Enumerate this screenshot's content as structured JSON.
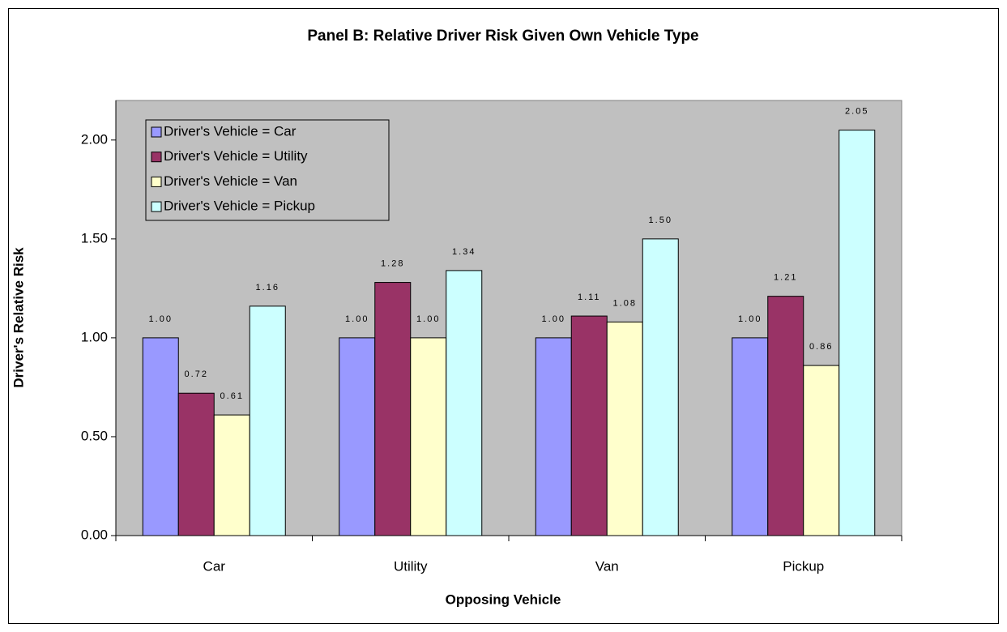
{
  "chart_data": {
    "type": "bar",
    "title": "Panel B: Relative Driver Risk Given Own Vehicle Type",
    "x_label": "Opposing Vehicle",
    "y_label": "Driver's Relative Risk",
    "categories": [
      "Car",
      "Utility",
      "Van",
      "Pickup"
    ],
    "series": [
      {
        "name": "Driver's Vehicle = Car",
        "color": "#9999ff",
        "values": [
          1,
          1,
          1,
          1
        ],
        "value_labels": [
          "1.00",
          "1.00",
          "1.00",
          "1.00"
        ]
      },
      {
        "name": "Driver's Vehicle = Utility",
        "color": "#993366",
        "values": [
          0.72,
          1.28,
          1.11,
          1.21
        ],
        "value_labels": [
          "0.72",
          "1.28",
          "1.11",
          "1.21"
        ]
      },
      {
        "name": "Driver's Vehicle = Van",
        "color": "#ffffcc",
        "values": [
          0.61,
          1,
          1.08,
          0.86
        ],
        "value_labels": [
          "0.61",
          "1.00",
          "1.08",
          "0.86"
        ]
      },
      {
        "name": "Driver's Vehicle = Pickup",
        "color": "#ccffff",
        "values": [
          1.16,
          1.34,
          1.5,
          2.05
        ],
        "value_labels": [
          "1.16",
          "1.34",
          "1.50",
          "2.05"
        ]
      }
    ],
    "ylim": [
      0,
      2.2
    ],
    "yticks": [
      {
        "value": 0,
        "label": "0.00"
      },
      {
        "value": 0.5,
        "label": "0.50"
      },
      {
        "value": 1,
        "label": "1.00"
      },
      {
        "value": 1.5,
        "label": "1.50"
      },
      {
        "value": 2,
        "label": "2.00"
      }
    ],
    "grid": false,
    "legend": "upper left",
    "plot_background": "#c0c0c0"
  }
}
